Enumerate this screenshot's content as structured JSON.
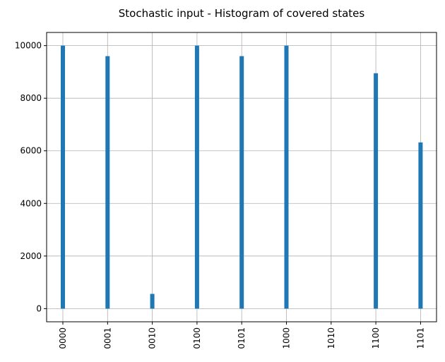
{
  "chart_data": {
    "type": "bar",
    "title": "Stochastic input - Histogram of covered states",
    "xlabel": "",
    "ylabel": "",
    "categories": [
      "0000",
      "0001",
      "0010",
      "0100",
      "0101",
      "1000",
      "1010",
      "1100",
      "1101"
    ],
    "values": [
      10000,
      9600,
      560,
      10000,
      9600,
      10000,
      0,
      8950,
      6320
    ],
    "ylim": [
      -500,
      10500
    ],
    "yticks": [
      "0",
      "2000",
      "4000",
      "6000",
      "8000",
      "10000"
    ],
    "grid": true,
    "bar_color": "#1f77b4"
  }
}
